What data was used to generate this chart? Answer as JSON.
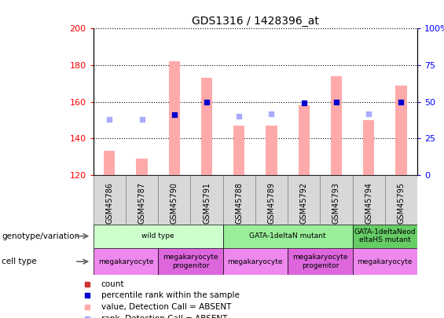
{
  "title": "GDS1316 / 1428396_at",
  "samples": [
    "GSM45786",
    "GSM45787",
    "GSM45790",
    "GSM45791",
    "GSM45788",
    "GSM45789",
    "GSM45792",
    "GSM45793",
    "GSM45794",
    "GSM45795"
  ],
  "bar_values": [
    133,
    129,
    182,
    173,
    147,
    147,
    158,
    174,
    150,
    169
  ],
  "bar_absent": [
    true,
    true,
    true,
    true,
    true,
    true,
    true,
    true,
    true,
    true
  ],
  "rank_values": [
    38,
    38,
    41,
    50,
    40,
    42,
    49,
    50,
    42,
    50
  ],
  "rank_absent": [
    true,
    true,
    false,
    false,
    true,
    true,
    false,
    false,
    true,
    false
  ],
  "ylim_left": [
    120,
    200
  ],
  "ylim_right": [
    0,
    100
  ],
  "yticks_left": [
    120,
    140,
    160,
    180,
    200
  ],
  "yticks_right": [
    0,
    25,
    50,
    75,
    100
  ],
  "bar_color_present": "#cc3333",
  "bar_color_absent": "#ffaaaa",
  "rank_color_present": "#0000cc",
  "rank_color_absent": "#aaaaff",
  "genotype_groups": [
    {
      "label": "wild type",
      "start": 0,
      "end": 4,
      "color": "#ccffcc"
    },
    {
      "label": "GATA-1deltaN mutant",
      "start": 4,
      "end": 8,
      "color": "#99ee99"
    },
    {
      "label": "GATA-1deltaNeod\neltaHS mutant",
      "start": 8,
      "end": 10,
      "color": "#66cc66"
    }
  ],
  "cell_type_groups": [
    {
      "label": "megakaryocyte",
      "start": 0,
      "end": 2,
      "color": "#ee88ee"
    },
    {
      "label": "megakaryocyte\nprogenitor",
      "start": 2,
      "end": 4,
      "color": "#dd66dd"
    },
    {
      "label": "megakaryocyte",
      "start": 4,
      "end": 6,
      "color": "#ee88ee"
    },
    {
      "label": "megakaryocyte\nprogenitor",
      "start": 6,
      "end": 8,
      "color": "#dd66dd"
    },
    {
      "label": "megakaryocyte",
      "start": 8,
      "end": 10,
      "color": "#ee88ee"
    }
  ],
  "legend_items": [
    {
      "label": "count",
      "color": "#cc3333"
    },
    {
      "label": "percentile rank within the sample",
      "color": "#0000cc"
    },
    {
      "label": "value, Detection Call = ABSENT",
      "color": "#ffaaaa"
    },
    {
      "label": "rank, Detection Call = ABSENT",
      "color": "#aaaaff"
    }
  ]
}
